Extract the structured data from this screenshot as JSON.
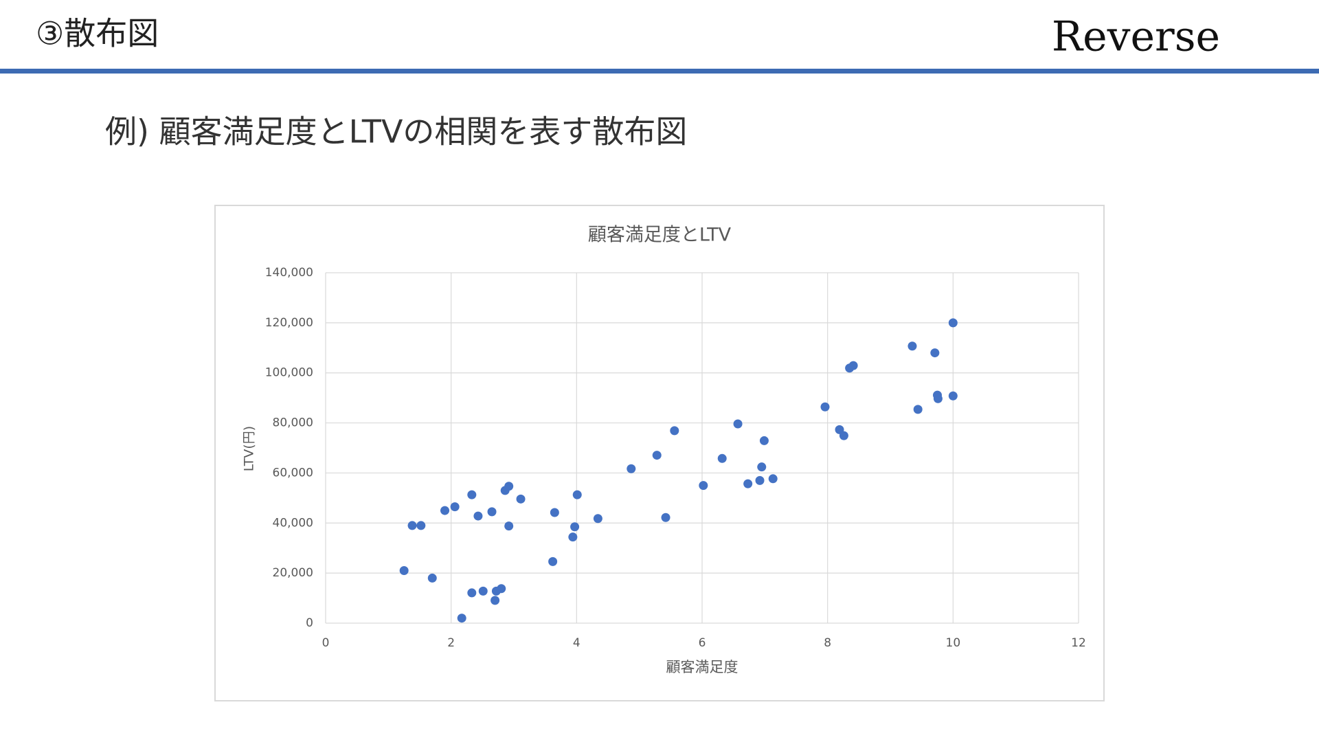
{
  "slide": {
    "section_title": "③散布図",
    "brand": "Reverse",
    "heading": "例) 顧客満足度とLTVの相関を表す散布図"
  },
  "chart_data": {
    "type": "scatter",
    "title": "顧客満足度とLTV",
    "x_label": "顧客満足度",
    "y_label": "LTV(円)",
    "color": "#4472c4",
    "grid": true,
    "x": [
      1.25,
      1.38,
      1.52,
      1.7,
      1.9,
      2.06,
      2.17,
      2.33,
      2.33,
      2.43,
      2.51,
      2.65,
      2.7,
      2.72,
      2.8,
      2.86,
      2.92,
      2.92,
      3.11,
      3.62,
      3.65,
      3.94,
      3.97,
      4.01,
      4.34,
      4.87,
      5.28,
      5.42,
      5.56,
      6.02,
      6.32,
      6.57,
      6.73,
      6.92,
      6.95,
      6.99,
      7.13,
      7.96,
      8.19,
      8.26,
      8.35,
      8.41,
      9.35,
      9.44,
      9.71,
      9.75,
      9.76,
      10.0,
      10.0
    ],
    "values": [
      21000,
      39000,
      39000,
      18000,
      45000,
      46500,
      2000,
      51300,
      12100,
      42800,
      12800,
      44500,
      9100,
      12800,
      13800,
      53000,
      54700,
      38800,
      49600,
      24600,
      44200,
      34400,
      38500,
      51300,
      41800,
      61700,
      67100,
      42200,
      76900,
      55000,
      65800,
      79600,
      55700,
      57000,
      62400,
      72900,
      57700,
      86400,
      77300,
      74900,
      101900,
      102900,
      110700,
      85400,
      108000,
      91100,
      89700,
      120000,
      90800
    ],
    "xlim": [
      0,
      12
    ],
    "xticks": [
      0,
      2,
      4,
      6,
      8,
      10,
      12
    ],
    "ylim": [
      0,
      140000
    ],
    "yticks": [
      0,
      {
        "value": 20000,
        "label": "20,000"
      },
      {
        "value": 40000,
        "label": "40,000"
      },
      {
        "value": 60000,
        "label": "60,000"
      },
      {
        "value": 80000,
        "label": "80,000"
      },
      {
        "value": 100000,
        "label": "100,000"
      },
      {
        "value": 120000,
        "label": "120,000"
      },
      {
        "value": 140000,
        "label": "140,000"
      }
    ]
  }
}
